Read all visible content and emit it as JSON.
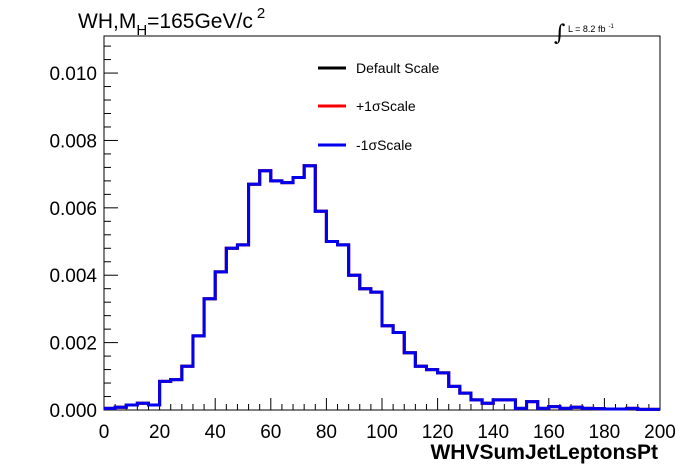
{
  "chart_data": {
    "type": "line",
    "title": "WH,M",
    "title_sub": "H",
    "title_rest": "=165GeV/c",
    "title_sup": "2",
    "lumi": {
      "integral": "∫",
      "label": "L = 8.2 fb",
      "sup": "-1"
    },
    "xlabel": "WHVSumJetLeptonsPt",
    "ylabel": "",
    "xlim": [
      0,
      200
    ],
    "ylim": [
      0,
      0.0111
    ],
    "x_ticks": [
      "0",
      "20",
      "40",
      "60",
      "80",
      "100",
      "120",
      "140",
      "160",
      "180",
      "200"
    ],
    "y_ticks": [
      "0.000",
      "0.002",
      "0.004",
      "0.006",
      "0.008",
      "0.010"
    ],
    "grid": false,
    "legend_position": "top-center",
    "bin_width": 4,
    "bin_edges_start": 0,
    "series": [
      {
        "name": "Default Scale",
        "color": "#000000",
        "values": [
          5e-05,
          8e-05,
          0.00015,
          0.0002,
          0.00015,
          0.00085,
          0.0009,
          0.0013,
          0.0022,
          0.0033,
          0.0041,
          0.0048,
          0.0049,
          0.0067,
          0.0071,
          0.0068,
          0.00675,
          0.0069,
          0.00725,
          0.0059,
          0.005,
          0.0049,
          0.004,
          0.0036,
          0.0035,
          0.0025,
          0.0023,
          0.0017,
          0.0013,
          0.0012,
          0.0011,
          0.0007,
          0.0005,
          0.0003,
          0.0002,
          0.0003,
          0.0003,
          5e-05,
          0.00025,
          5e-05,
          0.0001,
          5e-05,
          8e-05,
          5e-05,
          4e-05,
          3e-05,
          3e-05,
          5e-05,
          2e-05,
          2e-05
        ]
      },
      {
        "name": "+1σScale",
        "color": "#ff0000",
        "values": [
          5e-05,
          8e-05,
          0.00015,
          0.0002,
          0.00015,
          0.00085,
          0.0009,
          0.0013,
          0.0022,
          0.0033,
          0.0041,
          0.0048,
          0.0049,
          0.0067,
          0.0071,
          0.0068,
          0.00675,
          0.0069,
          0.00725,
          0.0059,
          0.005,
          0.0049,
          0.004,
          0.0036,
          0.0035,
          0.0025,
          0.0023,
          0.0017,
          0.0013,
          0.0012,
          0.0011,
          0.0007,
          0.0005,
          0.0003,
          0.0002,
          0.0003,
          0.0003,
          5e-05,
          0.00025,
          5e-05,
          0.0001,
          5e-05,
          8e-05,
          5e-05,
          4e-05,
          3e-05,
          3e-05,
          5e-05,
          2e-05,
          2e-05
        ]
      },
      {
        "name": "-1σScale",
        "color": "#0000ee",
        "values": [
          5e-05,
          8e-05,
          0.00015,
          0.0002,
          0.00015,
          0.00085,
          0.0009,
          0.0013,
          0.0022,
          0.0033,
          0.0041,
          0.0048,
          0.0049,
          0.0067,
          0.0071,
          0.0068,
          0.00675,
          0.0069,
          0.00725,
          0.0059,
          0.005,
          0.0049,
          0.004,
          0.0036,
          0.0035,
          0.0025,
          0.0023,
          0.0017,
          0.0013,
          0.0012,
          0.0011,
          0.0007,
          0.0005,
          0.0003,
          0.0002,
          0.0003,
          0.0003,
          5e-05,
          0.00025,
          5e-05,
          0.0001,
          5e-05,
          8e-05,
          5e-05,
          4e-05,
          3e-05,
          3e-05,
          5e-05,
          2e-05,
          2e-05
        ]
      }
    ]
  }
}
